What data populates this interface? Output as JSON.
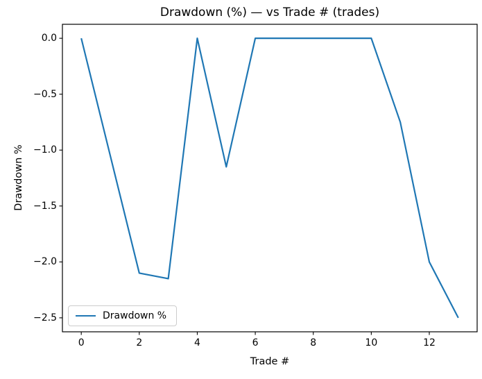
{
  "figure": {
    "background": "#ffffff",
    "text_color": "#000000",
    "axis_color": "#000000"
  },
  "chart_data": {
    "type": "line",
    "title": "Drawdown (%) — vs Trade # (trades)",
    "xlabel": "Trade #",
    "ylabel": "Drawdown %",
    "x": [
      0,
      1,
      2,
      3,
      4,
      5,
      6,
      7,
      8,
      9,
      10,
      11,
      12,
      13
    ],
    "series": [
      {
        "name": "Drawdown %",
        "color": "#1f77b4",
        "values": [
          0.0,
          -1.05,
          -2.1,
          -2.15,
          0.0,
          -1.15,
          0.0,
          0.0,
          0.0,
          0.0,
          0.0,
          -0.75,
          -2.0,
          -2.5
        ]
      }
    ],
    "xlim": [
      -0.65,
      13.65
    ],
    "ylim": [
      -2.625,
      0.125
    ],
    "xticks": {
      "values": [
        0,
        2,
        4,
        6,
        8,
        10,
        12
      ],
      "labels": [
        "0",
        "2",
        "4",
        "6",
        "8",
        "10",
        "12"
      ]
    },
    "yticks": {
      "values": [
        0.0,
        -0.5,
        -1.0,
        -1.5,
        -2.0,
        -2.5
      ],
      "labels": [
        "0.0",
        "−0.5",
        "−1.0",
        "−1.5",
        "−2.0",
        "−2.5"
      ]
    },
    "grid": false,
    "legend": {
      "position": "lower left",
      "entries": [
        "Drawdown %"
      ],
      "border_color": "#cccccc"
    }
  }
}
